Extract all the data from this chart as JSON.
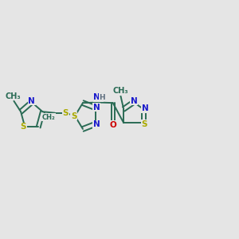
{
  "bg_color": "#e5e5e5",
  "bond_color": "#2a6b55",
  "N_color": "#1a1acc",
  "S_color": "#aaaa00",
  "O_color": "#cc0000",
  "H_color": "#607080",
  "line_width": 1.4,
  "font_size": 7.5,
  "fig_bg": "#e5e5e5",
  "xlim": [
    0,
    12
  ],
  "ylim": [
    0,
    10
  ]
}
